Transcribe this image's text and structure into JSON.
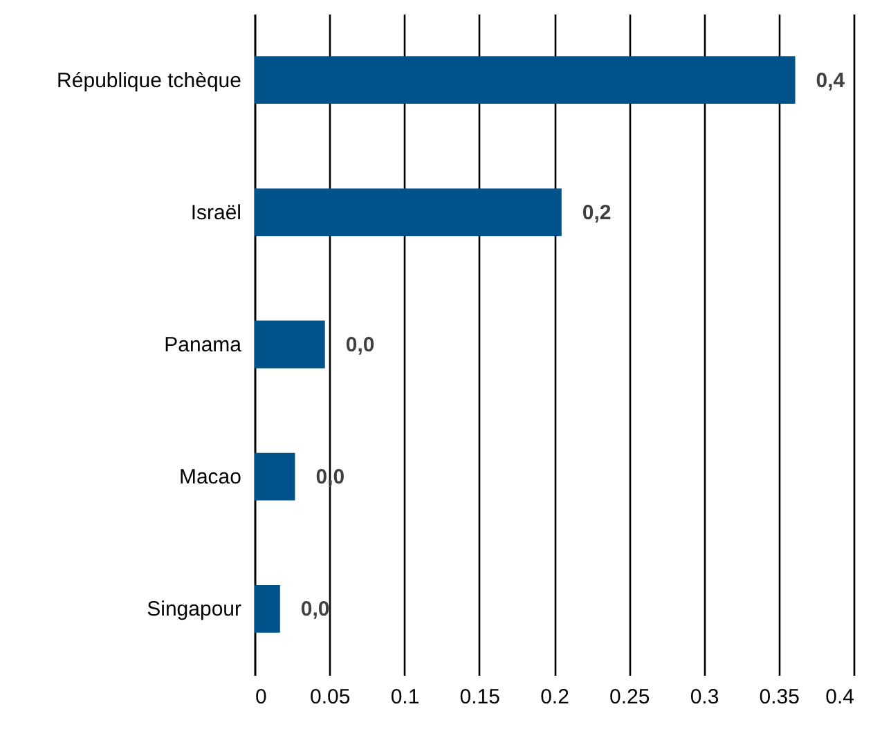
{
  "chart_data": {
    "type": "bar",
    "orientation": "horizontal",
    "categories": [
      "République tchèque",
      "Israël",
      "Panama",
      "Macao",
      "Singapour"
    ],
    "values": [
      0.361,
      0.205,
      0.047,
      0.027,
      0.017
    ],
    "value_labels": [
      "0,4",
      "0,2",
      "0,0",
      "0,0",
      "0,0"
    ],
    "color": "#00538a",
    "xlim": [
      0,
      0.4
    ],
    "xticks": [
      0,
      0.05,
      0.1,
      0.15,
      0.2,
      0.25,
      0.3,
      0.35,
      0.4
    ],
    "grid": "x"
  }
}
